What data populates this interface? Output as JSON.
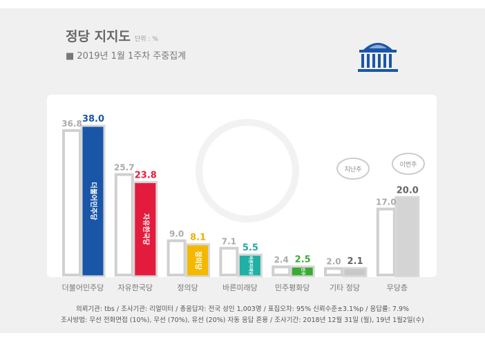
{
  "title": "정당 지지도",
  "unit": "단위 : %",
  "subtitle": "■ 2019년 1월 1주차 주중집계",
  "chart_data": {
    "type": "bar",
    "categories": [
      "더불어민주당",
      "자유한국당",
      "정의당",
      "바른미래당",
      "민주평화당",
      "기타 정당",
      "무당층"
    ],
    "series": [
      {
        "name": "지난주",
        "values": [
          36.8,
          25.7,
          9.0,
          7.1,
          2.4,
          2.0,
          17.0
        ]
      },
      {
        "name": "이번주",
        "values": [
          38.0,
          23.8,
          8.1,
          5.5,
          2.5,
          2.1,
          20.0
        ]
      }
    ],
    "bar_colors": [
      "#1a56a8",
      "#e31c3d",
      "#f5b800",
      "#20b0a5",
      "#3aaa35",
      "#c8c8c8",
      "#d4d4d4"
    ],
    "label_colors": [
      "#1a56a8",
      "#e31c3d",
      "#f0b000",
      "#20a8a0",
      "#3aaa35",
      "#666666",
      "#666666"
    ],
    "bar_labels": [
      "더불어민주당",
      "자유한국당",
      "정의당",
      "바른미래당",
      "민주평화당",
      "",
      ""
    ],
    "ylim": [
      0,
      40
    ],
    "grid": false,
    "legend_callouts": [
      "지난주",
      "이번주"
    ]
  },
  "notes": [
    "의뢰기관: tbs / 조사기관: 리얼미터 / 총응답자: 전국 성인 1,003명 / 표집오차: 95% 신뢰수준±3.1%p / 응답률: 7.9%",
    "조사방법: 무선 전화면접 (10%), 무선 (70%), 유선 (20%) 자동 응답 혼용 / 조사기간: 2018년 12월 31일 (월), 19년 1월2일(수)"
  ]
}
